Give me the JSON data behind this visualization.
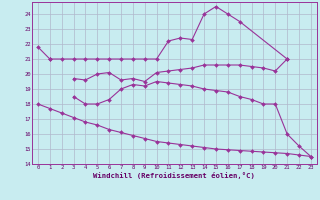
{
  "bg_color": "#c8ecf0",
  "grid_color": "#b0b8cc",
  "line_color": "#993399",
  "spine_color": "#993399",
  "tick_color": "#660066",
  "xlabel": "Windchill (Refroidissement éolien,°C)",
  "xlim": [
    -0.5,
    23.5
  ],
  "ylim": [
    14,
    24.8
  ],
  "yticks": [
    14,
    15,
    16,
    17,
    18,
    19,
    20,
    21,
    22,
    23,
    24
  ],
  "xticks": [
    0,
    1,
    2,
    3,
    4,
    5,
    6,
    7,
    8,
    9,
    10,
    11,
    12,
    13,
    14,
    15,
    16,
    17,
    18,
    19,
    20,
    21,
    22,
    23
  ],
  "line1_x": [
    0,
    1,
    1,
    2,
    3,
    4,
    5,
    6,
    7,
    8,
    9,
    10,
    11,
    12,
    13,
    14,
    15,
    16,
    17,
    21
  ],
  "line1_y": [
    21.8,
    21.0,
    21.0,
    21.0,
    21.0,
    21.0,
    21.0,
    21.0,
    21.0,
    21.0,
    21.0,
    21.0,
    22.2,
    22.4,
    22.3,
    24.0,
    24.5,
    24.0,
    23.5,
    21.0
  ],
  "line2_x": [
    3,
    4,
    5,
    6,
    7,
    8,
    9,
    10,
    11,
    12,
    13,
    14,
    15,
    16,
    17,
    18,
    19,
    20,
    21
  ],
  "line2_y": [
    19.7,
    19.6,
    20.0,
    20.1,
    19.6,
    19.7,
    19.5,
    20.1,
    20.2,
    20.3,
    20.4,
    20.6,
    20.6,
    20.6,
    20.6,
    20.5,
    20.4,
    20.2,
    21.0
  ],
  "line3_x": [
    3,
    4,
    5,
    6,
    7,
    8,
    9,
    10,
    11,
    12,
    13,
    14,
    15,
    16,
    17,
    18,
    19,
    20,
    21,
    22,
    23
  ],
  "line3_y": [
    18.5,
    18.0,
    18.0,
    18.3,
    19.0,
    19.3,
    19.2,
    19.5,
    19.4,
    19.3,
    19.2,
    19.0,
    18.9,
    18.8,
    18.5,
    18.3,
    18.0,
    18.0,
    16.0,
    15.2,
    14.5
  ],
  "line4_x": [
    0,
    1,
    2,
    3,
    4,
    5,
    6,
    7,
    8,
    9,
    10,
    11,
    12,
    13,
    14,
    15,
    16,
    17,
    18,
    19,
    20,
    21,
    22,
    23
  ],
  "line4_y": [
    18.0,
    17.7,
    17.4,
    17.1,
    16.8,
    16.6,
    16.3,
    16.1,
    15.9,
    15.7,
    15.5,
    15.4,
    15.3,
    15.2,
    15.1,
    15.0,
    14.95,
    14.9,
    14.85,
    14.8,
    14.75,
    14.7,
    14.6,
    14.5
  ]
}
